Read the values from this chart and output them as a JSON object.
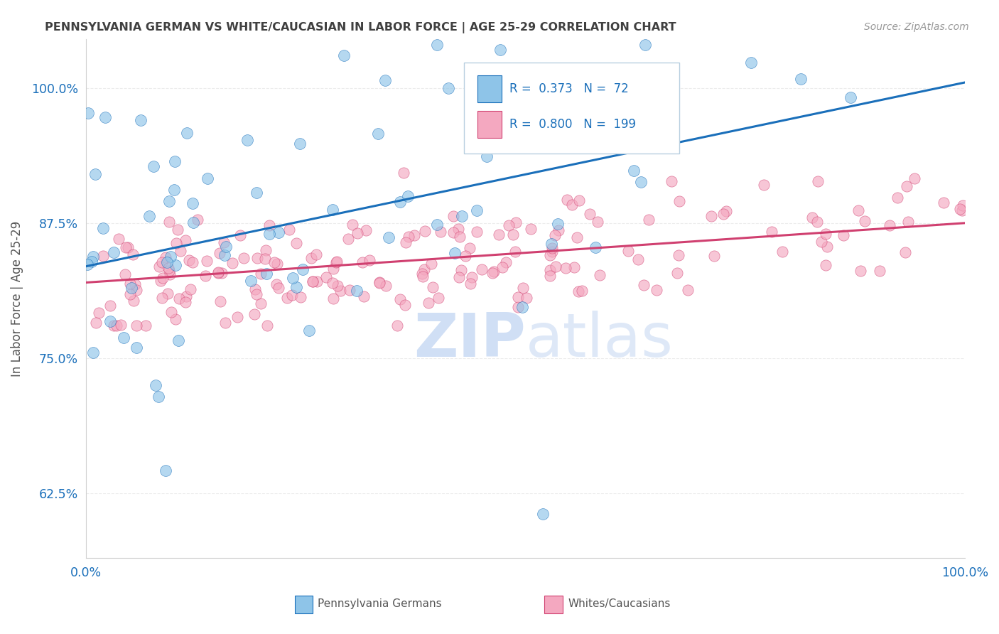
{
  "title": "PENNSYLVANIA GERMAN VS WHITE/CAUCASIAN IN LABOR FORCE | AGE 25-29 CORRELATION CHART",
  "source_text": "Source: ZipAtlas.com",
  "ylabel_text": "In Labor Force | Age 25-29",
  "xmin": 0.0,
  "xmax": 1.0,
  "ymin": 0.565,
  "ymax": 1.045,
  "yticks": [
    0.625,
    0.75,
    0.875,
    1.0
  ],
  "ytick_labels": [
    "62.5%",
    "75.0%",
    "87.5%",
    "100.0%"
  ],
  "xticks": [
    0.0,
    0.25,
    0.5,
    0.75,
    1.0
  ],
  "xtick_labels": [
    "0.0%",
    "",
    "",
    "",
    "100.0%"
  ],
  "blue_R": 0.373,
  "blue_N": 72,
  "pink_R": 0.8,
  "pink_N": 199,
  "blue_color": "#8ec4e8",
  "pink_color": "#f4a8c0",
  "blue_line_color": "#1a6fba",
  "pink_line_color": "#d04070",
  "watermark_color": "#d0dff5",
  "background_color": "#ffffff",
  "grid_color": "#e8e8e8",
  "title_color": "#404040",
  "source_color": "#999999",
  "legend_text_color": "#1a6fba",
  "blue_line_start_y": 0.835,
  "blue_line_end_y": 1.005,
  "pink_line_start_y": 0.82,
  "pink_line_end_y": 0.875
}
